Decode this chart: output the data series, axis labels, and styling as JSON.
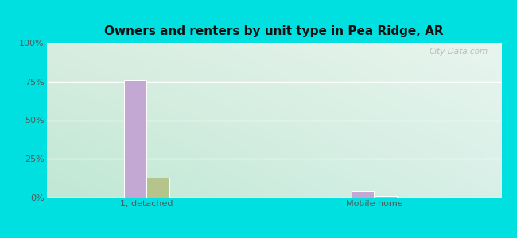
{
  "title": "Owners and renters by unit type in Pea Ridge, AR",
  "categories": [
    "1, detached",
    "Mobile home"
  ],
  "owner_values": [
    76,
    4
  ],
  "renter_values": [
    13,
    1
  ],
  "owner_color": "#c4a8d4",
  "renter_color": "#b5c48a",
  "ylim": [
    0,
    100
  ],
  "yticks": [
    0,
    25,
    50,
    75,
    100
  ],
  "ytick_labels": [
    "0%",
    "25%",
    "50%",
    "75%",
    "100%"
  ],
  "bg_tl": "#d8ede0",
  "bg_tr": "#e8f5ee",
  "bg_bl": "#c0e8d4",
  "bg_br": "#d8f0e8",
  "outer_bg": "#00e0e0",
  "bar_width": 0.28,
  "group_positions": [
    0.22,
    0.72
  ],
  "xlim": [
    0.0,
    1.0
  ],
  "watermark": "City-Data.com"
}
